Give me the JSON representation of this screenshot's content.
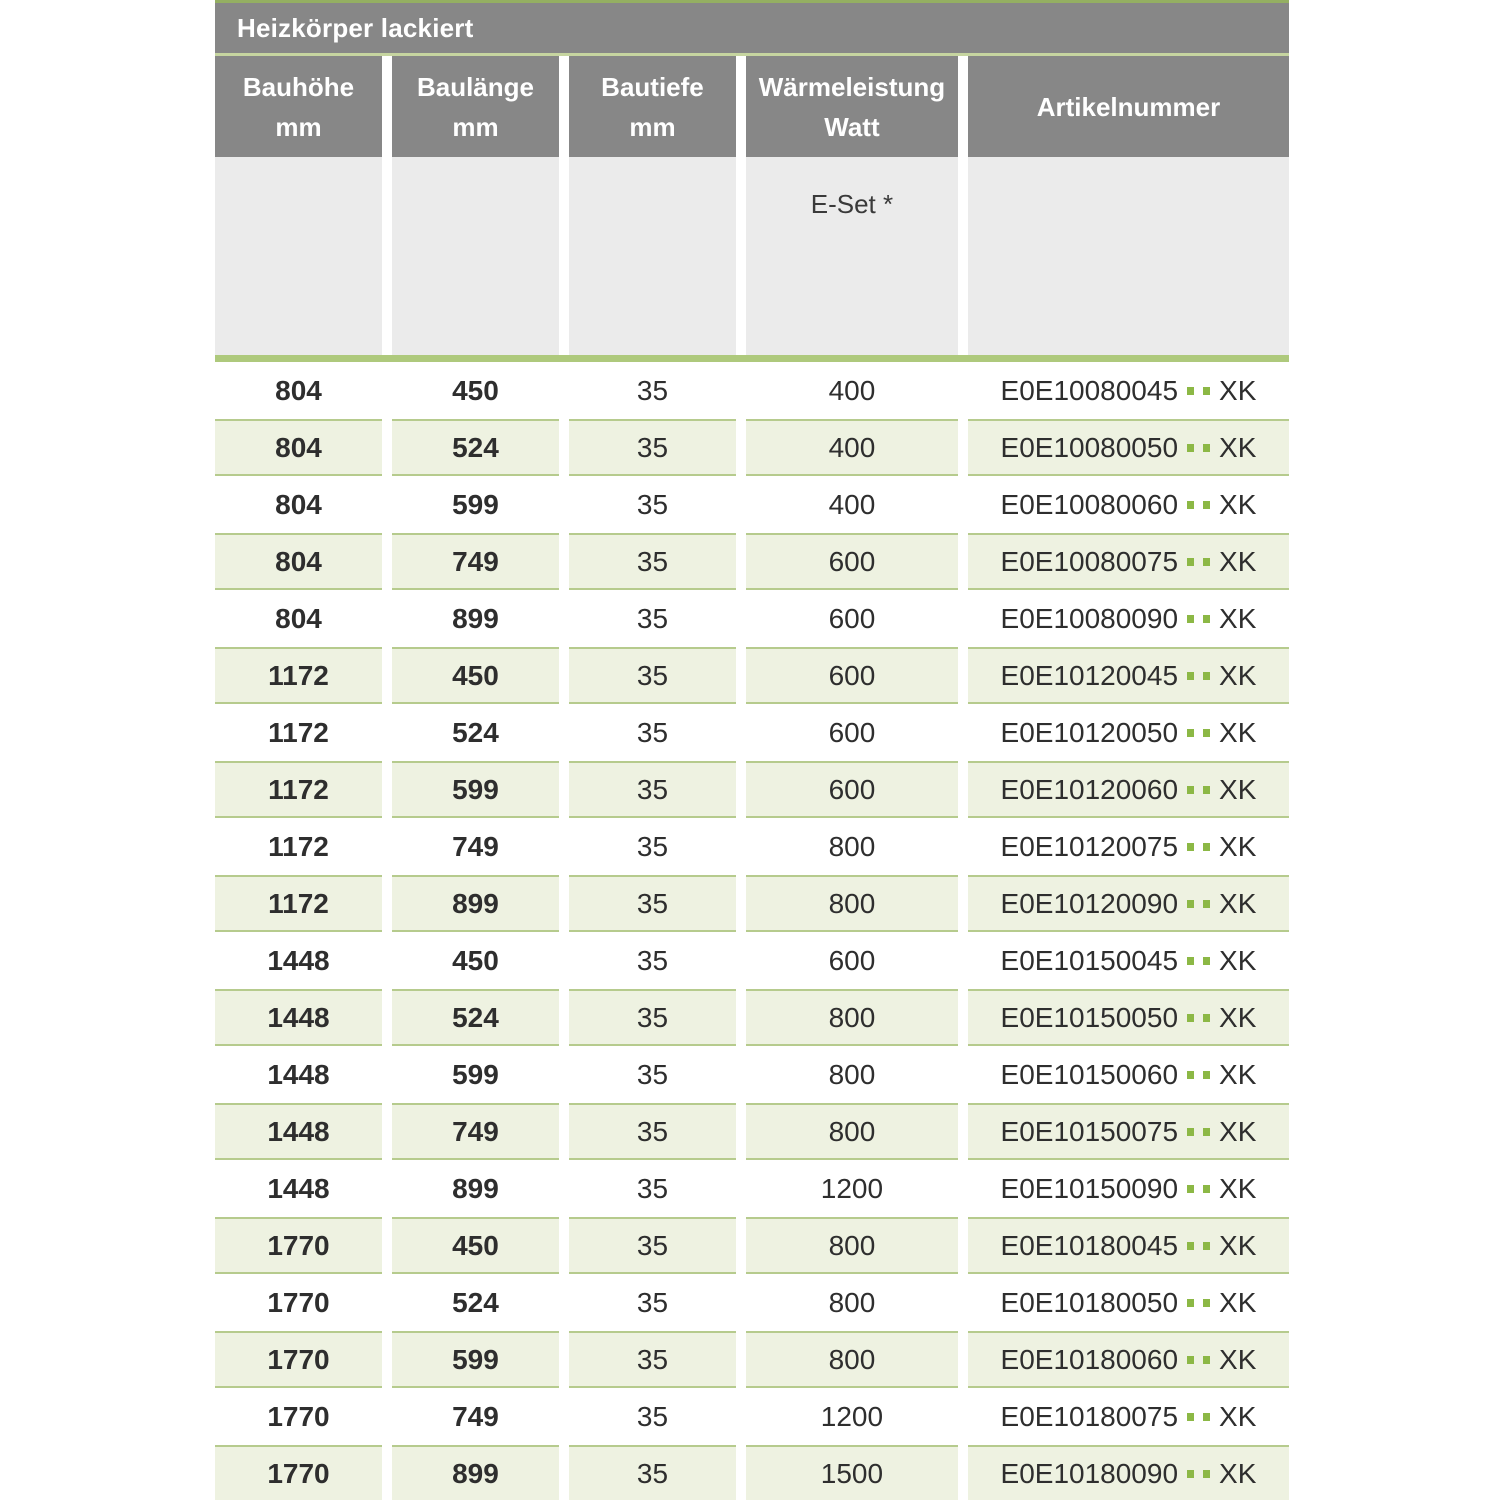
{
  "table": {
    "title": "Heizkörper lackiert",
    "columns": [
      {
        "key": "bauhoehe",
        "label_line1": "Bauhöhe",
        "label_line2": "mm"
      },
      {
        "key": "baulaenge",
        "label_line1": "Baulänge",
        "label_line2": "mm"
      },
      {
        "key": "bautiefe",
        "label_line1": "Bautiefe",
        "label_line2": "mm"
      },
      {
        "key": "waermeleistung",
        "label_line1": "Wärmeleistung",
        "label_line2": "Watt"
      },
      {
        "key": "artikelnummer",
        "label_line1": "Artikelnummer",
        "label_line2": ""
      }
    ],
    "subheader": {
      "eset_label": "E-Set *",
      "column_index": 3
    },
    "rows": [
      {
        "bauhoehe": "804",
        "baulaenge": "450",
        "bautiefe": "35",
        "watt": "400",
        "artikel_prefix": "E0E10080045",
        "artikel_suffix": "XK"
      },
      {
        "bauhoehe": "804",
        "baulaenge": "524",
        "bautiefe": "35",
        "watt": "400",
        "artikel_prefix": "E0E10080050",
        "artikel_suffix": "XK"
      },
      {
        "bauhoehe": "804",
        "baulaenge": "599",
        "bautiefe": "35",
        "watt": "400",
        "artikel_prefix": "E0E10080060",
        "artikel_suffix": "XK"
      },
      {
        "bauhoehe": "804",
        "baulaenge": "749",
        "bautiefe": "35",
        "watt": "600",
        "artikel_prefix": "E0E10080075",
        "artikel_suffix": "XK"
      },
      {
        "bauhoehe": "804",
        "baulaenge": "899",
        "bautiefe": "35",
        "watt": "600",
        "artikel_prefix": "E0E10080090",
        "artikel_suffix": "XK"
      },
      {
        "bauhoehe": "1172",
        "baulaenge": "450",
        "bautiefe": "35",
        "watt": "600",
        "artikel_prefix": "E0E10120045",
        "artikel_suffix": "XK"
      },
      {
        "bauhoehe": "1172",
        "baulaenge": "524",
        "bautiefe": "35",
        "watt": "600",
        "artikel_prefix": "E0E10120050",
        "artikel_suffix": "XK"
      },
      {
        "bauhoehe": "1172",
        "baulaenge": "599",
        "bautiefe": "35",
        "watt": "600",
        "artikel_prefix": "E0E10120060",
        "artikel_suffix": "XK"
      },
      {
        "bauhoehe": "1172",
        "baulaenge": "749",
        "bautiefe": "35",
        "watt": "800",
        "artikel_prefix": "E0E10120075",
        "artikel_suffix": "XK"
      },
      {
        "bauhoehe": "1172",
        "baulaenge": "899",
        "bautiefe": "35",
        "watt": "800",
        "artikel_prefix": "E0E10120090",
        "artikel_suffix": "XK"
      },
      {
        "bauhoehe": "1448",
        "baulaenge": "450",
        "bautiefe": "35",
        "watt": "600",
        "artikel_prefix": "E0E10150045",
        "artikel_suffix": "XK"
      },
      {
        "bauhoehe": "1448",
        "baulaenge": "524",
        "bautiefe": "35",
        "watt": "800",
        "artikel_prefix": "E0E10150050",
        "artikel_suffix": "XK"
      },
      {
        "bauhoehe": "1448",
        "baulaenge": "599",
        "bautiefe": "35",
        "watt": "800",
        "artikel_prefix": "E0E10150060",
        "artikel_suffix": "XK"
      },
      {
        "bauhoehe": "1448",
        "baulaenge": "749",
        "bautiefe": "35",
        "watt": "800",
        "artikel_prefix": "E0E10150075",
        "artikel_suffix": "XK"
      },
      {
        "bauhoehe": "1448",
        "baulaenge": "899",
        "bautiefe": "35",
        "watt": "1200",
        "artikel_prefix": "E0E10150090",
        "artikel_suffix": "XK"
      },
      {
        "bauhoehe": "1770",
        "baulaenge": "450",
        "bautiefe": "35",
        "watt": "800",
        "artikel_prefix": "E0E10180045",
        "artikel_suffix": "XK"
      },
      {
        "bauhoehe": "1770",
        "baulaenge": "524",
        "bautiefe": "35",
        "watt": "800",
        "artikel_prefix": "E0E10180050",
        "artikel_suffix": "XK"
      },
      {
        "bauhoehe": "1770",
        "baulaenge": "599",
        "bautiefe": "35",
        "watt": "800",
        "artikel_prefix": "E0E10180060",
        "artikel_suffix": "XK"
      },
      {
        "bauhoehe": "1770",
        "baulaenge": "749",
        "bautiefe": "35",
        "watt": "1200",
        "artikel_prefix": "E0E10180075",
        "artikel_suffix": "XK"
      },
      {
        "bauhoehe": "1770",
        "baulaenge": "899",
        "bautiefe": "35",
        "watt": "1500",
        "artikel_prefix": "E0E10180090",
        "artikel_suffix": "XK"
      }
    ],
    "colors": {
      "header_gray": "#878787",
      "top_accent_green": "#94af62",
      "title_separator_green": "#c6d5a0",
      "thick_separator_green": "#aec97c",
      "green_row_background": "#eef2e1",
      "green_row_border": "#b6cb8d",
      "article_dot_green": "#8cb845",
      "subheader_gray": "#ebebeb",
      "text_dark": "#2e2e2e"
    }
  }
}
